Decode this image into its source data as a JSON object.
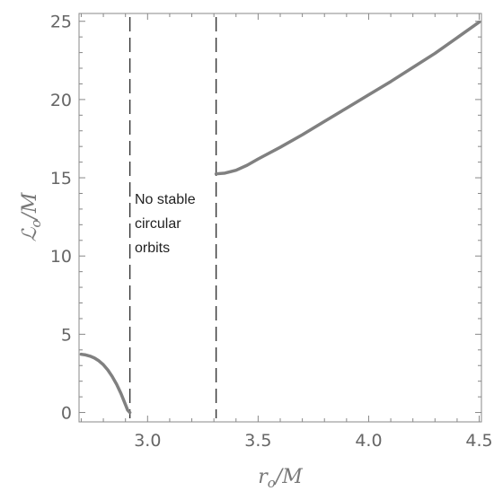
{
  "chart_data": {
    "type": "line",
    "xlabel": "r_o/M",
    "ylabel": "ℒ_o/M",
    "xlim": [
      2.69,
      4.51
    ],
    "ylim": [
      -0.6,
      25.5
    ],
    "xticks": [
      3.0,
      3.5,
      4.0,
      4.5
    ],
    "xtick_labels": [
      "3.0",
      "3.5",
      "4.0",
      "4.5"
    ],
    "yticks": [
      0,
      5,
      10,
      15,
      20,
      25
    ],
    "ytick_labels": [
      "0",
      "5",
      "10",
      "15",
      "20",
      "25"
    ],
    "grid": false,
    "line_color": "#808080",
    "series": [
      {
        "x": [
          2.7,
          2.72,
          2.74,
          2.76,
          2.78,
          2.8,
          2.82,
          2.84,
          2.86,
          2.88,
          2.9,
          2.91,
          2.92
        ],
        "y": [
          3.72,
          3.68,
          3.6,
          3.48,
          3.3,
          3.05,
          2.72,
          2.3,
          1.8,
          1.2,
          0.5,
          0.15,
          0.0
        ]
      },
      {
        "x": [
          3.31,
          3.35,
          3.4,
          3.45,
          3.5,
          3.6,
          3.7,
          3.8,
          3.9,
          4.0,
          4.1,
          4.2,
          4.3,
          4.4,
          4.5
        ],
        "y": [
          15.25,
          15.3,
          15.48,
          15.8,
          16.2,
          16.95,
          17.75,
          18.6,
          19.45,
          20.3,
          21.15,
          22.05,
          22.95,
          23.95,
          24.95
        ]
      }
    ],
    "vlines": [
      2.92,
      3.31
    ],
    "annotation_lines": [
      "No stable",
      "circular",
      "orbits"
    ]
  }
}
